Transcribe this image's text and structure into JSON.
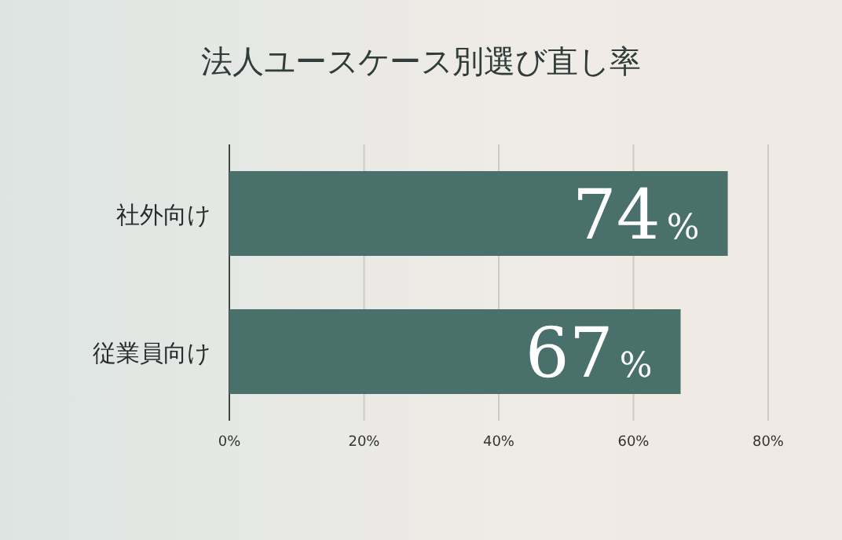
{
  "chart_data": {
    "type": "bar",
    "title": "法人ユースケース別選び直し率",
    "orientation": "horizontal",
    "categories": [
      "社外向け",
      "従業員向け"
    ],
    "values": [
      74,
      67
    ],
    "value_labels": [
      "74%",
      "67%"
    ],
    "color": "#4a706b",
    "xlim": [
      0,
      80
    ],
    "xticks": [
      {
        "value": 0,
        "label": "0%"
      },
      {
        "value": 20,
        "label": "20%"
      },
      {
        "value": 40,
        "label": "40%"
      },
      {
        "value": 60,
        "label": "60%"
      },
      {
        "value": 80,
        "label": "80%"
      }
    ],
    "grid": "x"
  }
}
